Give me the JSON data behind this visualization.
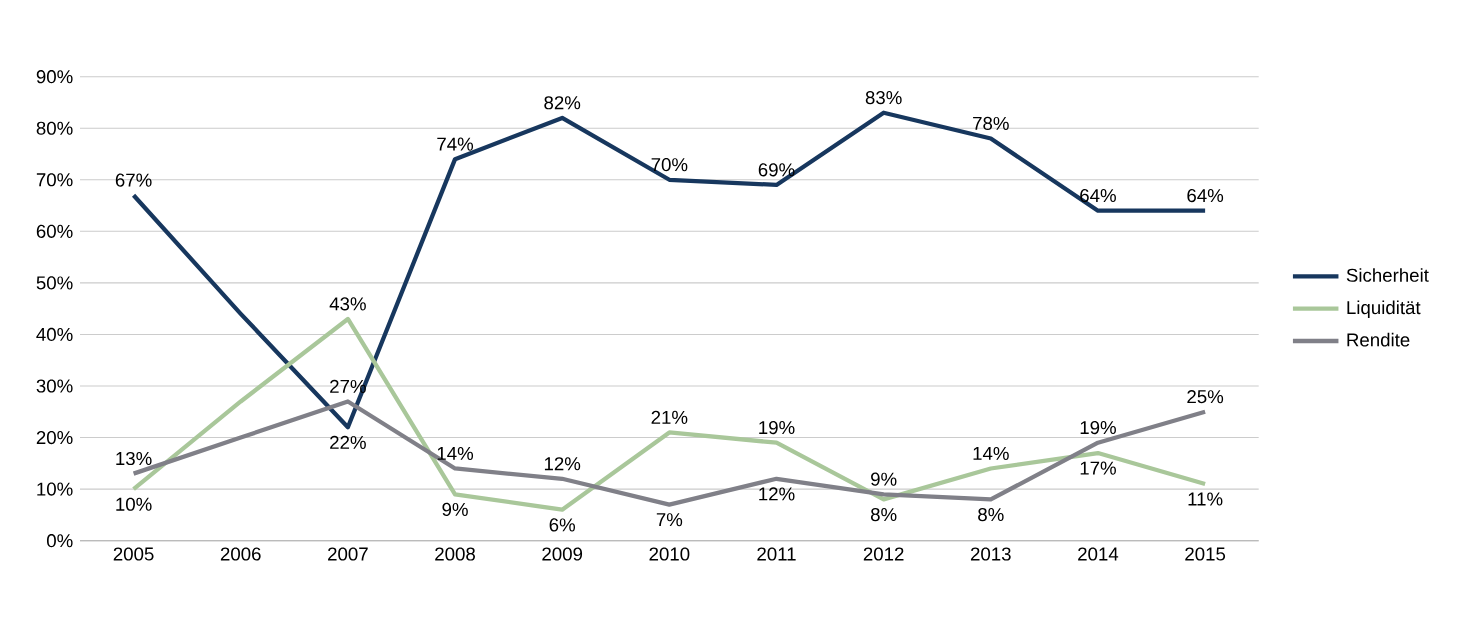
{
  "chart_data": {
    "type": "line",
    "categories": [
      "2005",
      "2006",
      "2007",
      "2008",
      "2009",
      "2010",
      "2011",
      "2012",
      "2013",
      "2014",
      "2015"
    ],
    "series": [
      {
        "name": "Sicherheit",
        "color": "#17375e",
        "values": [
          67,
          44,
          22,
          74,
          82,
          70,
          69,
          83,
          78,
          64,
          64
        ],
        "value_labels": [
          "67%",
          null,
          "22%",
          "74%",
          "82%",
          "70%",
          "69%",
          "83%",
          "78%",
          "64%",
          "64%"
        ]
      },
      {
        "name": "Liquidität",
        "color": "#a9c79a",
        "values": [
          10,
          27,
          43,
          9,
          6,
          21,
          19,
          8,
          14,
          17,
          11
        ],
        "value_labels": [
          "10%",
          null,
          "43%",
          "9%",
          "6%",
          "21%",
          "19%",
          "8%",
          "14%",
          "17%",
          "11%"
        ]
      },
      {
        "name": "Rendite",
        "color": "#808088",
        "values": [
          13,
          20,
          27,
          14,
          12,
          7,
          12,
          9,
          8,
          19,
          25
        ],
        "value_labels": [
          "13%",
          null,
          "27%",
          "14%",
          "12%",
          "7%",
          "12%",
          "9%",
          "8%",
          "19%",
          "25%"
        ]
      }
    ],
    "ylim": [
      0,
      90
    ],
    "yticks": [
      {
        "value": 0,
        "label": "0%"
      },
      {
        "value": 10,
        "label": "10%"
      },
      {
        "value": 20,
        "label": "20%"
      },
      {
        "value": 30,
        "label": "30%"
      },
      {
        "value": 40,
        "label": "40%"
      },
      {
        "value": 50,
        "label": "50%"
      },
      {
        "value": 60,
        "label": "60%"
      },
      {
        "value": 70,
        "label": "70%"
      },
      {
        "value": 80,
        "label": "80%"
      },
      {
        "value": 90,
        "label": "90%"
      }
    ],
    "grid": "y",
    "legend": "right",
    "marker": "none",
    "line_style": "solid"
  }
}
